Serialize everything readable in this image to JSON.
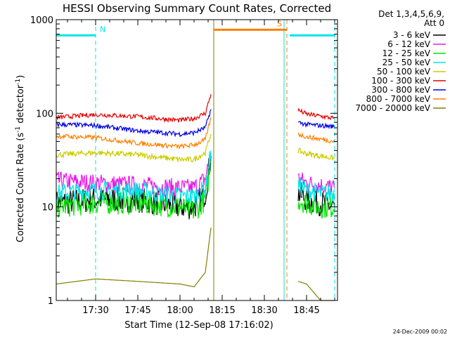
{
  "chart_data": {
    "type": "line",
    "title": "HESSI Observing Summary Count Rates, Corrected",
    "xlabel": "Start Time (12-Sep-08 17:16:02)",
    "ylabel_main": "Corrected Count Rate (s",
    "ylabel_sup1": "-1",
    "ylabel_mid": " detector",
    "ylabel_sup2": "-1",
    "ylabel_end": ")",
    "yscale": "log",
    "ylim": [
      1,
      1000
    ],
    "xlim": [
      "17:16",
      "18:56"
    ],
    "x_ticks": [
      "17:30",
      "17:45",
      "18:00",
      "18:15",
      "18:30",
      "18:45"
    ],
    "y_ticks": [
      "1",
      "10",
      "100",
      "1000"
    ],
    "legend_placement": "right",
    "legend_header": [
      "Det 1,3,4,5,6,9,",
      "Att 0"
    ],
    "series": [
      {
        "name": "3 - 6 keV",
        "color": "#000000",
        "x": [
          "17:16",
          "17:30",
          "17:45",
          "18:00",
          "18:05",
          "18:09",
          "18:11",
          "18:42",
          "18:45",
          "18:50",
          "18:55"
        ],
        "values": [
          11,
          12,
          12,
          10,
          10,
          14,
          35,
          14,
          12,
          11,
          10
        ]
      },
      {
        "name": "6 - 12 keV",
        "color": "#e61be6",
        "x": [
          "17:16",
          "17:30",
          "17:45",
          "18:00",
          "18:05",
          "18:09",
          "18:11",
          "18:42",
          "18:45",
          "18:50",
          "18:55"
        ],
        "values": [
          19,
          18,
          17,
          16,
          16,
          20,
          38,
          20,
          18,
          17,
          16
        ]
      },
      {
        "name": "12 - 25 keV",
        "color": "#00e600",
        "x": [
          "17:16",
          "17:30",
          "17:45",
          "18:00",
          "18:05",
          "18:09",
          "18:11",
          "18:42",
          "18:45",
          "18:50",
          "18:55"
        ],
        "values": [
          10,
          11,
          11,
          10,
          9,
          12,
          30,
          12,
          11,
          10,
          10
        ]
      },
      {
        "name": "25 - 50 keV",
        "color": "#00e6e6",
        "x": [
          "17:16",
          "17:30",
          "17:45",
          "18:00",
          "18:05",
          "18:09",
          "18:11",
          "18:42",
          "18:45",
          "18:50",
          "18:55"
        ],
        "values": [
          14,
          15,
          15,
          13,
          13,
          16,
          40,
          17,
          15,
          14,
          14
        ]
      },
      {
        "name": "50 - 100 keV",
        "color": "#cccc00",
        "x": [
          "17:16",
          "17:30",
          "17:45",
          "18:00",
          "18:05",
          "18:09",
          "18:11",
          "18:42",
          "18:45",
          "18:50",
          "18:55"
        ],
        "values": [
          36,
          38,
          36,
          32,
          32,
          38,
          60,
          40,
          37,
          35,
          33
        ]
      },
      {
        "name": "100 - 300 keV",
        "color": "#e60000",
        "x": [
          "17:16",
          "17:30",
          "17:45",
          "18:00",
          "18:05",
          "18:09",
          "18:11",
          "18:42",
          "18:45",
          "18:50",
          "18:55"
        ],
        "values": [
          90,
          97,
          92,
          84,
          88,
          100,
          160,
          108,
          98,
          93,
          88
        ]
      },
      {
        "name": "300 - 800 keV",
        "color": "#0000e6",
        "x": [
          "17:16",
          "17:30",
          "17:45",
          "18:00",
          "18:05",
          "18:09",
          "18:11",
          "18:42",
          "18:45",
          "18:50",
          "18:55"
        ],
        "values": [
          76,
          74,
          65,
          60,
          62,
          70,
          110,
          80,
          76,
          74,
          72
        ]
      },
      {
        "name": "800 - 7000 keV",
        "color": "#ff8000",
        "x": [
          "17:16",
          "17:30",
          "17:45",
          "18:00",
          "18:05",
          "18:09",
          "18:11",
          "18:42",
          "18:45",
          "18:50",
          "18:55"
        ],
        "values": [
          57,
          55,
          48,
          44,
          46,
          52,
          90,
          60,
          56,
          53,
          50
        ]
      },
      {
        "name": "7000 - 20000 keV",
        "color": "#808000",
        "x": [
          "17:16",
          "17:30",
          "17:45",
          "18:00",
          "18:05",
          "18:09",
          "18:11",
          "18:42",
          "18:45",
          "18:50",
          "18:55"
        ],
        "values": [
          1.5,
          1.7,
          1.6,
          1.5,
          1.4,
          2,
          6,
          1.6,
          1.5,
          1,
          1
        ]
      }
    ],
    "attenuator_bars": [
      {
        "label": "N",
        "color": "#00e6e6",
        "start": "17:16",
        "end": "17:30",
        "level": 680,
        "dashed_at": "17:30"
      },
      {
        "label": "S",
        "color": "#ff8000",
        "start": "18:12",
        "end": "18:38",
        "level": 780,
        "dashed_at": "18:38"
      },
      {
        "label": "",
        "color": "#00e6e6",
        "start": "18:39",
        "end": "18:55",
        "level": 680,
        "dashed_at": "18:55"
      }
    ],
    "vertical_lines": [
      {
        "x": "17:16",
        "color": "#00e6e6",
        "style": "solid"
      },
      {
        "x": "17:30",
        "color": "#00e6e6",
        "style": "dashed"
      },
      {
        "x": "18:12",
        "color": "#ff8000",
        "style": "solid"
      },
      {
        "x": "18:12",
        "color": "#808000",
        "style": "solid"
      },
      {
        "x": "18:37",
        "color": "#00e6e6",
        "style": "solid"
      },
      {
        "x": "18:38",
        "color": "#ff8000",
        "style": "dashed"
      },
      {
        "x": "18:55",
        "color": "#00e6e6",
        "style": "dashed"
      }
    ],
    "footer_date": "24-Dec-2009 00:02"
  },
  "colors": {
    "background": "#ffffff",
    "axes": "#000000"
  }
}
